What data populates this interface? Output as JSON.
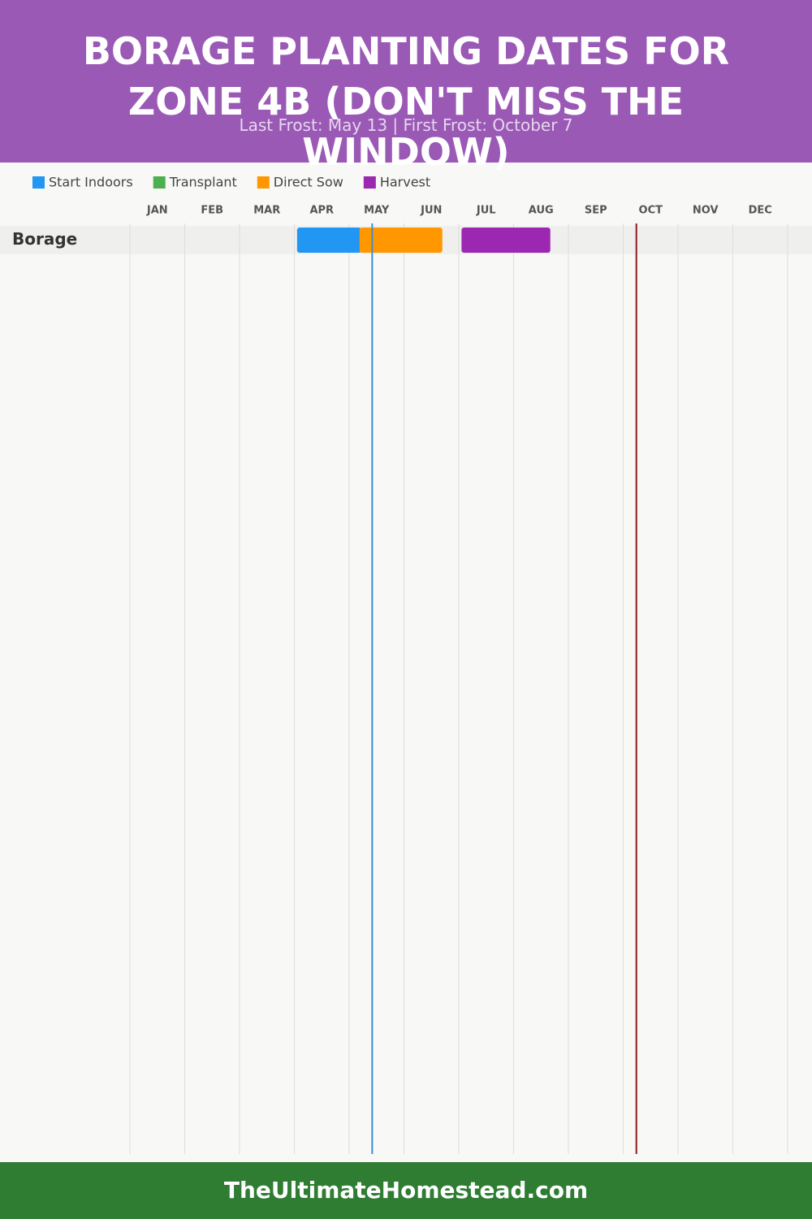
{
  "chart_data": {
    "type": "gantt",
    "title": "BORAGE PLANTING DATES FOR ZONE 4B (DON'T MISS THE WINDOW)",
    "subtitle": "Last Frost: May 13 | First Frost: October 7",
    "categories": [
      "JAN",
      "FEB",
      "MAR",
      "APR",
      "MAY",
      "JUN",
      "JUL",
      "AUG",
      "SEP",
      "OCT",
      "NOV",
      "DEC"
    ],
    "rows": [
      "Borage"
    ],
    "xlim": [
      0,
      12
    ],
    "xticks": [
      0,
      1,
      2,
      3,
      4,
      5,
      6,
      7,
      8,
      9,
      10,
      11,
      12
    ],
    "grid": true,
    "series": [
      {
        "name": "Start Indoors",
        "color": "#2196f3",
        "start": [
          3.05
        ],
        "end": [
          4.22
        ]
      },
      {
        "name": "Transplant",
        "color": "#4caf50",
        "start": [
          null
        ],
        "end": [
          null
        ]
      },
      {
        "name": "Direct Sow",
        "color": "#ff9800",
        "start": [
          4.19
        ],
        "end": [
          5.7
        ]
      },
      {
        "name": "Harvest",
        "color": "#9c27b0",
        "start": [
          6.05
        ],
        "end": [
          7.67
        ]
      }
    ],
    "frost_lines": [
      {
        "value": 4.42,
        "color": "#3a8fd6"
      },
      {
        "value": 9.24,
        "color": "#8b1a1a"
      }
    ]
  },
  "footer": "TheUltimateHomestead.com"
}
